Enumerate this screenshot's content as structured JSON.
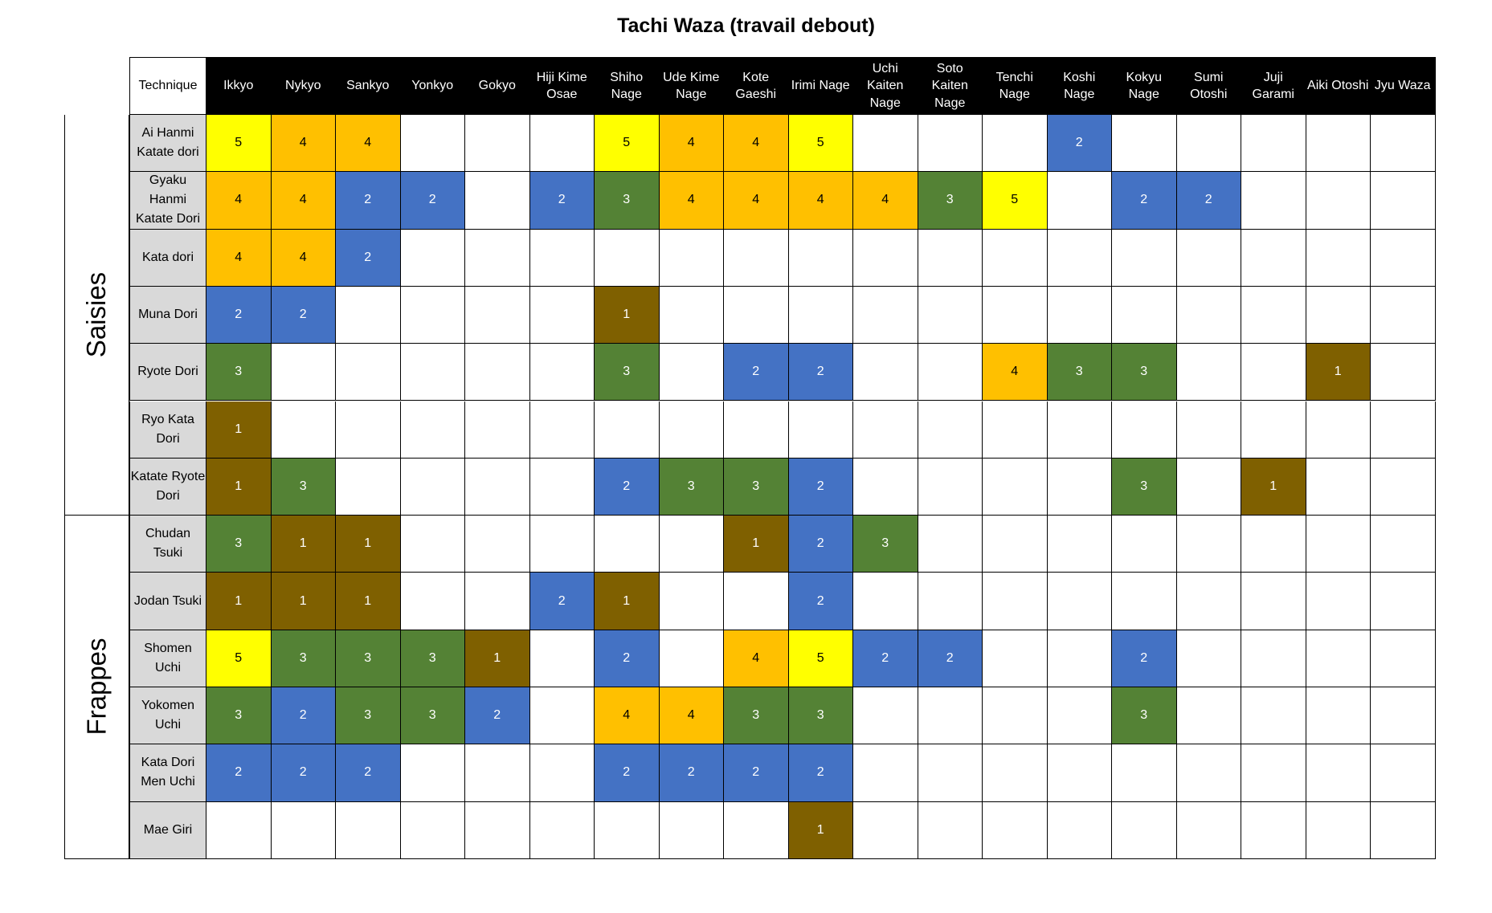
{
  "chart_data": {
    "type": "heatmap",
    "title": "Tachi Waza (travail debout)",
    "corner_label": "Technique",
    "columns": [
      "Ikkyo",
      "Nykyo",
      "Sankyo",
      "Yonkyo",
      "Gokyo",
      "Hiji Kime Osae",
      "Shiho Nage",
      "Ude Kime Nage",
      "Kote Gaeshi",
      "Irimi Nage",
      "Uchi Kaiten Nage",
      "Soto Kaiten Nage",
      "Tenchi Nage",
      "Koshi Nage",
      "Kokyu Nage",
      "Sumi Otoshi",
      "Juji Garami",
      "Aiki Otoshi",
      "Jyu Waza"
    ],
    "groups": [
      {
        "name": "Saisies",
        "rows": [
          0,
          1,
          2,
          3,
          4,
          5,
          6
        ]
      },
      {
        "name": "Frappes",
        "rows": [
          7,
          8,
          9,
          10,
          11,
          12
        ]
      }
    ],
    "rows": [
      {
        "label": "Ai Hanmi Katate dori",
        "values": [
          5,
          4,
          4,
          null,
          null,
          null,
          5,
          4,
          4,
          5,
          null,
          null,
          null,
          2,
          null,
          null,
          null,
          null,
          null
        ]
      },
      {
        "label": "Gyaku Hanmi Katate Dori",
        "values": [
          4,
          4,
          2,
          2,
          null,
          2,
          3,
          4,
          4,
          4,
          4,
          3,
          5,
          null,
          2,
          2,
          null,
          null,
          null
        ]
      },
      {
        "label": "Kata dori",
        "values": [
          4,
          4,
          2,
          null,
          null,
          null,
          null,
          null,
          null,
          null,
          null,
          null,
          null,
          null,
          null,
          null,
          null,
          null,
          null
        ]
      },
      {
        "label": "Muna Dori",
        "values": [
          2,
          2,
          null,
          null,
          null,
          null,
          1,
          null,
          null,
          null,
          null,
          null,
          null,
          null,
          null,
          null,
          null,
          null,
          null
        ]
      },
      {
        "label": "Ryote Dori",
        "values": [
          3,
          null,
          null,
          null,
          null,
          null,
          3,
          null,
          2,
          2,
          null,
          null,
          4,
          3,
          3,
          null,
          null,
          1,
          null
        ]
      },
      {
        "label": "Ryo Kata Dori",
        "values": [
          1,
          null,
          null,
          null,
          null,
          null,
          null,
          null,
          null,
          null,
          null,
          null,
          null,
          null,
          null,
          null,
          null,
          null,
          null
        ]
      },
      {
        "label": "Katate Ryote Dori",
        "values": [
          1,
          3,
          null,
          null,
          null,
          null,
          2,
          3,
          3,
          2,
          null,
          null,
          null,
          null,
          3,
          null,
          1,
          null,
          null
        ]
      },
      {
        "label": "Chudan Tsuki",
        "values": [
          3,
          1,
          1,
          null,
          null,
          null,
          null,
          null,
          1,
          2,
          3,
          null,
          null,
          null,
          null,
          null,
          null,
          null,
          null
        ]
      },
      {
        "label": "Jodan Tsuki",
        "values": [
          1,
          1,
          1,
          null,
          null,
          2,
          1,
          null,
          null,
          2,
          null,
          null,
          null,
          null,
          null,
          null,
          null,
          null,
          null
        ]
      },
      {
        "label": "Shomen Uchi",
        "values": [
          5,
          3,
          3,
          3,
          1,
          null,
          2,
          null,
          4,
          5,
          2,
          2,
          null,
          null,
          2,
          null,
          null,
          null,
          null
        ]
      },
      {
        "label": "Yokomen Uchi",
        "values": [
          3,
          2,
          3,
          3,
          2,
          null,
          4,
          4,
          3,
          3,
          null,
          null,
          null,
          null,
          3,
          null,
          null,
          null,
          null
        ]
      },
      {
        "label": "Kata Dori Men Uchi",
        "values": [
          2,
          2,
          2,
          null,
          null,
          null,
          2,
          2,
          2,
          2,
          null,
          null,
          null,
          null,
          null,
          null,
          null,
          null,
          null
        ]
      },
      {
        "label": "Mae Giri",
        "values": [
          null,
          null,
          null,
          null,
          null,
          null,
          null,
          null,
          null,
          1,
          null,
          null,
          null,
          null,
          null,
          null,
          null,
          null,
          null
        ]
      }
    ],
    "colors": {
      "1": {
        "bg": "#7f6000",
        "fg": "#ffffff"
      },
      "2": {
        "bg": "#4472c4",
        "fg": "#ffffff"
      },
      "3": {
        "bg": "#548235",
        "fg": "#ffffff"
      },
      "4": {
        "bg": "#ffc000",
        "fg": "#000000"
      },
      "5": {
        "bg": "#ffff00",
        "fg": "#000000"
      }
    }
  }
}
